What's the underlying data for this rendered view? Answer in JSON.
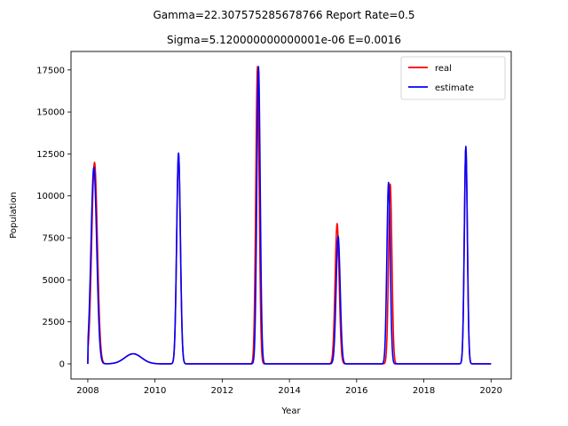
{
  "chart_data": {
    "type": "line",
    "title_line1": "Gamma=22.307575285678766 Report Rate=0.5",
    "title_line2": "Sigma=5.120000000000001e-06 E=0.0016",
    "xlabel": "Year",
    "ylabel": "Population",
    "xlim": [
      2007.5,
      2020.6
    ],
    "ylim": [
      -900,
      18600
    ],
    "xticks": [
      2008,
      2010,
      2012,
      2014,
      2016,
      2018,
      2020
    ],
    "yticks": [
      0,
      2500,
      5000,
      7500,
      10000,
      12500,
      15000,
      17500
    ],
    "legend_position": "top-right",
    "series": [
      {
        "name": "real",
        "color": "#ff0000",
        "peaks": [
          {
            "x": 2008.2,
            "y": 12000,
            "w": 0.085
          },
          {
            "x": 2009.35,
            "y": 600,
            "w": 0.25
          },
          {
            "x": 2010.7,
            "y": 12500,
            "w": 0.055
          },
          {
            "x": 2013.05,
            "y": 17700,
            "w": 0.05
          },
          {
            "x": 2015.42,
            "y": 8350,
            "w": 0.06
          },
          {
            "x": 2017.0,
            "y": 10700,
            "w": 0.05
          },
          {
            "x": 2019.25,
            "y": 12900,
            "w": 0.045
          }
        ]
      },
      {
        "name": "estimate",
        "color": "#0000ff",
        "peaks": [
          {
            "x": 2008.18,
            "y": 11700,
            "w": 0.085
          },
          {
            "x": 2009.35,
            "y": 600,
            "w": 0.25
          },
          {
            "x": 2010.7,
            "y": 12550,
            "w": 0.055
          },
          {
            "x": 2013.08,
            "y": 17700,
            "w": 0.05
          },
          {
            "x": 2015.45,
            "y": 7600,
            "w": 0.06
          },
          {
            "x": 2016.95,
            "y": 10800,
            "w": 0.05
          },
          {
            "x": 2019.25,
            "y": 12950,
            "w": 0.045
          }
        ]
      }
    ]
  }
}
